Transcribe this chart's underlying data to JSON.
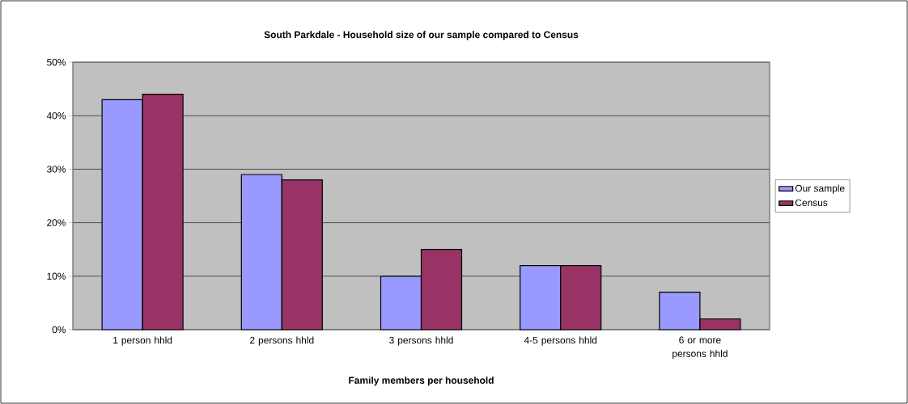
{
  "chart_data": {
    "type": "bar",
    "title": "South Parkdale - Household size of our sample compared to Census",
    "xlabel": "Family members per household",
    "categories": [
      "1 person hhld",
      "2 persons hhld",
      "3 persons hhld",
      "4-5 persons hhld",
      "6 or more persons hhld"
    ],
    "series": [
      {
        "name": "Our sample",
        "color": "#9999ff",
        "values": [
          43,
          29,
          10,
          12,
          7
        ]
      },
      {
        "name": "Census",
        "color": "#993366",
        "values": [
          44,
          28,
          15,
          12,
          2
        ]
      }
    ],
    "ylim": [
      0,
      50
    ],
    "yticks": [
      {
        "value": 0,
        "label": "0%"
      },
      {
        "value": 10,
        "label": "10%"
      },
      {
        "value": 20,
        "label": "20%"
      },
      {
        "value": 30,
        "label": "30%"
      },
      {
        "value": 40,
        "label": "40%"
      },
      {
        "value": 50,
        "label": "50%"
      }
    ],
    "grid": "y",
    "legend": "right"
  }
}
